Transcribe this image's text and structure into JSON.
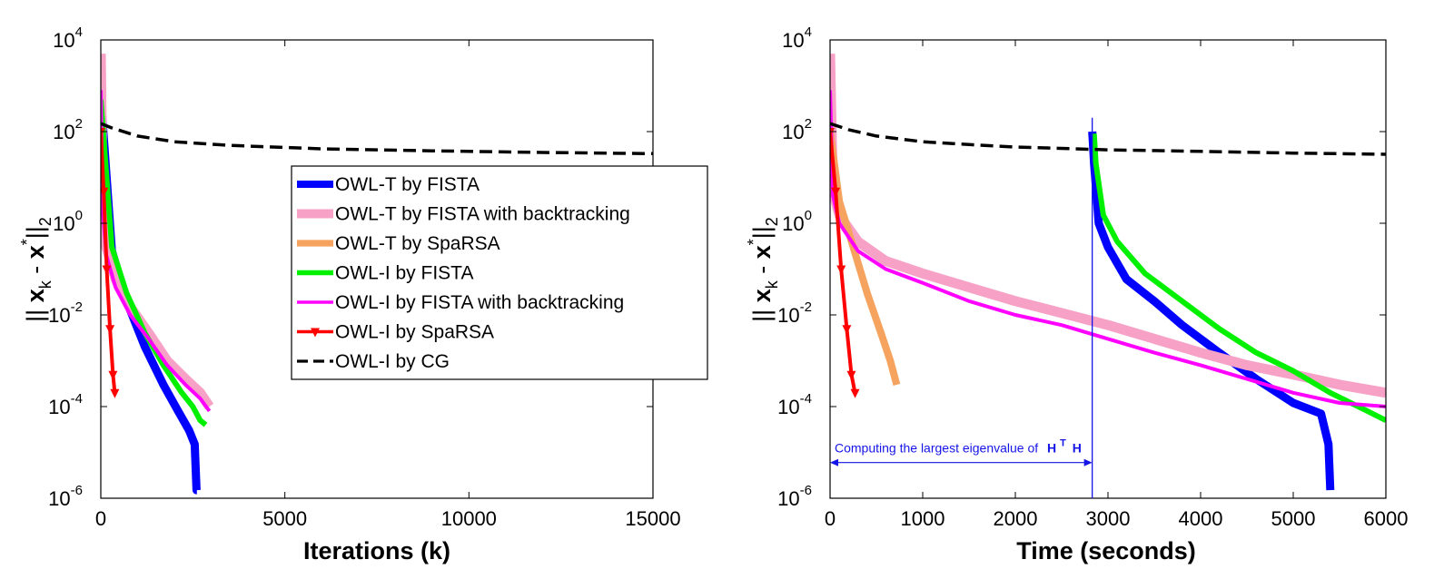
{
  "chart_data": [
    {
      "type": "line",
      "xlabel": "Iterations (k)",
      "ylabel": "|| x_k - x^* ||_2",
      "yscale": "log",
      "xlim": [
        0,
        15000
      ],
      "ylim": [
        1e-06,
        10000.0
      ],
      "xticks": [
        0,
        5000,
        10000,
        15000
      ],
      "yticks": [
        1e-06,
        0.0001,
        0.01,
        1.0,
        100.0,
        10000.0
      ],
      "legend_position": "upper-right",
      "series": [
        {
          "name": "OWL-T by FISTA",
          "color": "#0000ff",
          "x": [
            0,
            300,
            700,
            1200,
            1700,
            2100,
            2400,
            2550,
            2600,
            2610
          ],
          "y": [
            600,
            0.25,
            0.02,
            0.002,
            0.0003,
            8e-05,
            3e-05,
            1.5e-05,
            1.5e-06,
            1.5e-06
          ]
        },
        {
          "name": "OWL-T by FISTA with backtracking",
          "color": "#f7a1c7",
          "x": [
            0,
            50,
            150,
            400,
            800,
            1300,
            1800,
            2300,
            2700,
            2950
          ],
          "y": [
            5000,
            3,
            0.3,
            0.06,
            0.015,
            0.004,
            0.001,
            0.0004,
            0.0002,
            0.0001
          ]
        },
        {
          "name": "OWL-T by SpaRSA",
          "color": "#f5a35e",
          "x": [],
          "y": []
        },
        {
          "name": "OWL-I by FISTA",
          "color": "#00f000",
          "x": [
            0,
            300,
            700,
            1200,
            1700,
            2200,
            2500,
            2700,
            2850
          ],
          "y": [
            500,
            0.3,
            0.03,
            0.004,
            0.0008,
            0.0002,
            0.0001,
            5e-05,
            4e-05
          ]
        },
        {
          "name": "OWL-I by FISTA with backtracking",
          "color": "#ff00ff",
          "x": [
            0,
            50,
            150,
            400,
            800,
            1300,
            1800,
            2300,
            2700,
            2950
          ],
          "y": [
            800,
            2,
            0.2,
            0.04,
            0.01,
            0.003,
            0.0008,
            0.0003,
            0.00015,
            8e-05
          ]
        },
        {
          "name": "OWL-I by SpaRSA",
          "color": "#ff0000",
          "x": [
            0,
            80,
            160,
            250,
            330,
            380
          ],
          "y": [
            100,
            5,
            0.1,
            0.005,
            0.0005,
            0.0002
          ]
        },
        {
          "name": "OWL-I by CG",
          "color": "#000000",
          "x": [
            0,
            300,
            1000,
            2000,
            3500,
            6000,
            9000,
            12000,
            15000
          ],
          "y": [
            150,
            120,
            80,
            60,
            50,
            42,
            38,
            35,
            33
          ]
        }
      ]
    },
    {
      "type": "line",
      "xlabel": "Time (seconds)",
      "ylabel": "|| x_k - x^* ||_2",
      "yscale": "log",
      "xlim": [
        0,
        6000
      ],
      "ylim": [
        1e-06,
        10000.0
      ],
      "xticks": [
        0,
        1000,
        2000,
        3000,
        4000,
        5000,
        6000
      ],
      "yticks": [
        1e-06,
        0.0001,
        0.01,
        1.0,
        100.0,
        10000.0
      ],
      "series": [
        {
          "name": "OWL-T by FISTA",
          "color": "#0000ff",
          "x": [
            2830,
            2850,
            2900,
            3000,
            3200,
            3500,
            3800,
            4200,
            4600,
            5000,
            5300,
            5380,
            5400
          ],
          "y": [
            100,
            20,
            1,
            0.3,
            0.06,
            0.02,
            0.006,
            0.0015,
            0.0004,
            0.00012,
            7e-05,
            1.5e-05,
            1.5e-06
          ]
        },
        {
          "name": "OWL-T by FISTA with backtracking",
          "color": "#f7a1c7",
          "x": [
            0,
            30,
            100,
            300,
            600,
            1000,
            1500,
            2000,
            2500,
            3000,
            3500,
            4000,
            4500,
            5000,
            5500,
            6000
          ],
          "y": [
            5000,
            5,
            1.5,
            0.4,
            0.15,
            0.08,
            0.04,
            0.02,
            0.011,
            0.006,
            0.003,
            0.0015,
            0.0008,
            0.0005,
            0.0003,
            0.0002
          ]
        },
        {
          "name": "OWL-T by SpaRSA",
          "color": "#f5a35e",
          "x": [
            0,
            100,
            250,
            400,
            550,
            650,
            720
          ],
          "y": [
            100,
            3,
            0.3,
            0.03,
            0.004,
            0.001,
            0.0003
          ]
        },
        {
          "name": "OWL-I by FISTA",
          "color": "#00f000",
          "x": [
            2850,
            2870,
            2950,
            3100,
            3400,
            3800,
            4200,
            4600,
            5000,
            5400,
            5800,
            6000
          ],
          "y": [
            90,
            20,
            1.5,
            0.4,
            0.08,
            0.02,
            0.005,
            0.0015,
            0.0006,
            0.0002,
            8e-05,
            5e-05
          ]
        },
        {
          "name": "OWL-I by FISTA with backtracking",
          "color": "#ff00ff",
          "x": [
            0,
            30,
            100,
            300,
            600,
            1000,
            1500,
            2000,
            2500,
            3000,
            3500,
            4000,
            4500,
            5000,
            5500,
            6000
          ],
          "y": [
            800,
            4,
            1,
            0.25,
            0.1,
            0.05,
            0.02,
            0.01,
            0.006,
            0.003,
            0.0015,
            0.0008,
            0.0004,
            0.0002,
            0.00012,
            0.0001
          ]
        },
        {
          "name": "OWL-I by SpaRSA",
          "color": "#ff0000",
          "x": [
            0,
            60,
            120,
            180,
            230,
            270
          ],
          "y": [
            100,
            5,
            0.1,
            0.005,
            0.0005,
            0.0002
          ]
        },
        {
          "name": "OWL-I by CG",
          "color": "#000000",
          "x": [
            0,
            200,
            500,
            1000,
            1500,
            2000,
            3000,
            4000,
            5000,
            6000
          ],
          "y": [
            150,
            110,
            80,
            60,
            52,
            46,
            40,
            37,
            34,
            32
          ]
        }
      ],
      "annotations": [
        {
          "text_prefix": "Computing the largest eigenvalue of",
          "symbol": "H",
          "superscript": "T",
          "symbol2": "H",
          "x_start": 0,
          "x_end": 2830,
          "y": 6e-06
        }
      ],
      "vline": {
        "x": 2830,
        "color": "#1515e8"
      }
    }
  ]
}
